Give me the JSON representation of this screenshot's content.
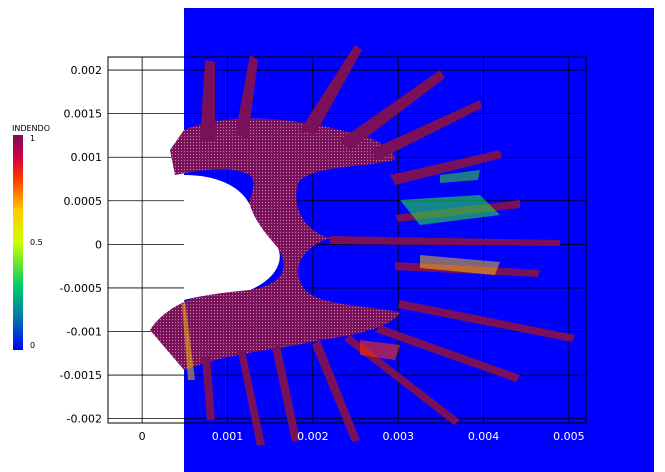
{
  "chart_data": {
    "type": "heatmap",
    "title": "",
    "xlabel": "",
    "ylabel": "",
    "xlim": [
      -0.0004,
      0.0052
    ],
    "ylim": [
      -0.00205,
      0.00215
    ],
    "x_ticks": [
      0,
      0.001,
      0.002,
      0.003,
      0.004,
      0.005
    ],
    "x_tick_labels": [
      "0",
      "0.001",
      "0.002",
      "0.003",
      "0.004",
      "0.005"
    ],
    "y_ticks": [
      0.002,
      0.0015,
      0.001,
      0.0005,
      0,
      -0.0005,
      -0.001,
      -0.0015,
      -0.002
    ],
    "y_tick_labels": [
      "0.002",
      "0.0015",
      "0.001",
      "0.0005",
      "0",
      "-0.0005",
      "-0.001",
      "-0.0015",
      "-0.002"
    ],
    "grid": true,
    "colorbar": {
      "title": "INDENDO",
      "min": 0,
      "max": 1,
      "tick_labels": [
        "1",
        "0.5",
        "0"
      ],
      "colors": [
        "#0000ff",
        "#ff0000",
        "#7a0f5a"
      ]
    },
    "background_field_value": 0,
    "background_color": "#0000ff",
    "penetration_color": "#7a0f5a"
  }
}
